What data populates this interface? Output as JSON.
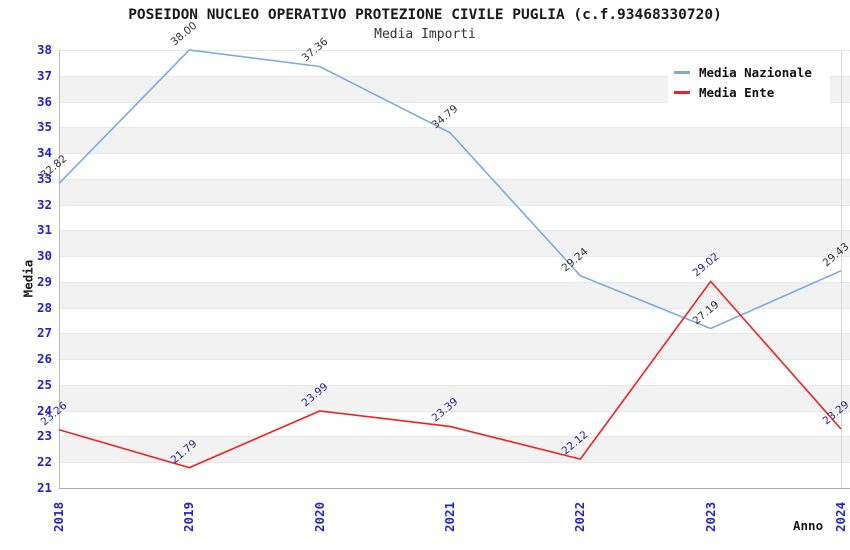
{
  "chart_data": {
    "type": "line",
    "title": "POSEIDON NUCLEO OPERATIVO PROTEZIONE CIVILE PUGLIA (c.f.93468330720)",
    "subtitle": "Media Importi",
    "xlabel": "Anno",
    "ylabel": "Media",
    "x": [
      "2018",
      "2019",
      "2020",
      "2021",
      "2022",
      "2023",
      "2024"
    ],
    "ylim": [
      21,
      38
    ],
    "ytick_step": 1,
    "yticks": [
      21,
      22,
      23,
      24,
      25,
      26,
      27,
      28,
      29,
      30,
      31,
      32,
      33,
      34,
      35,
      36,
      37,
      38
    ],
    "grid": "horizontal-bands",
    "legend_position": "top-right",
    "tick_label_color": "#2323cc",
    "band_color": "#f2f2f2",
    "gridline_color": "#e8e8e8",
    "series": [
      {
        "name": "Media Nazionale",
        "color": "#7daae1",
        "label_color": "#333333",
        "values": [
          32.82,
          38.0,
          37.36,
          34.79,
          29.24,
          27.19,
          29.43
        ]
      },
      {
        "name": "Media Ente",
        "color": "#ee2222",
        "label_color": "#252590",
        "values": [
          23.26,
          21.79,
          23.99,
          23.39,
          22.12,
          29.02,
          23.29
        ]
      }
    ]
  }
}
